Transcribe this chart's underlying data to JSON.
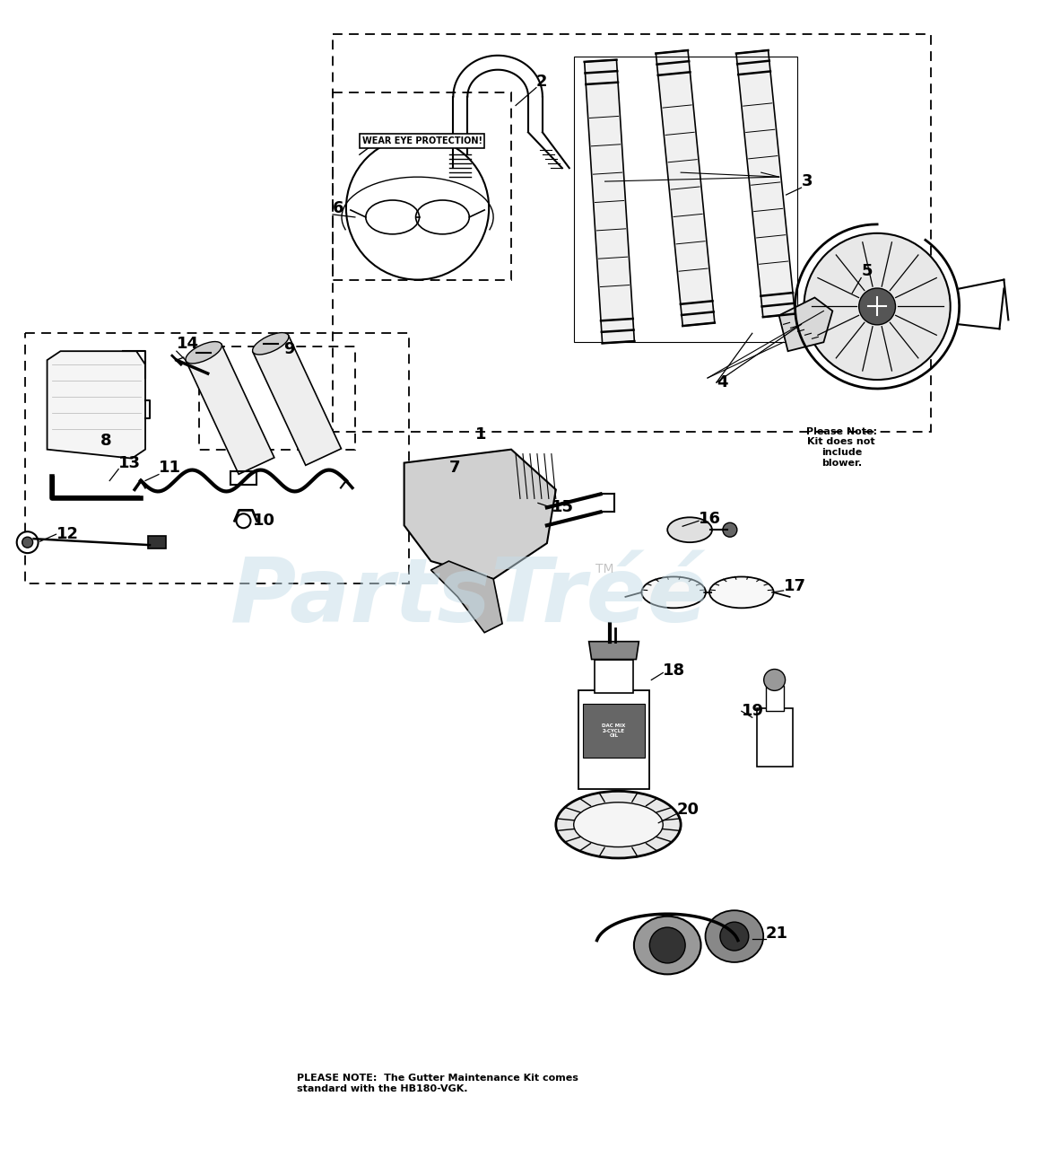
{
  "bg_color": "#ffffff",
  "fig_width": 11.63,
  "fig_height": 12.8,
  "wear_eye_text": "WEAR EYE PROTECTION!",
  "please_note_text": "Please Note:\nKit does not\ninclude\nblower.",
  "bottom_note_text": "PLEASE NOTE:  The Gutter Maintenance Kit comes\nstandard with the HB180-VGK.",
  "tm_text": "TM"
}
